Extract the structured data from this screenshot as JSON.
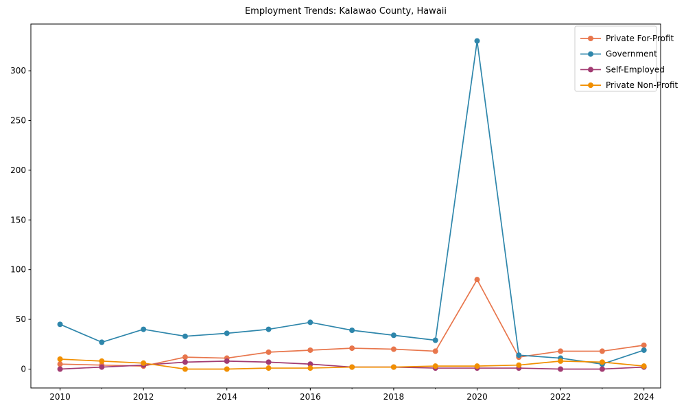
{
  "chart_data": {
    "type": "line",
    "title": "Employment Trends: Kalawao County, Hawaii",
    "xlabel": "",
    "ylabel": "",
    "x": [
      2010,
      2011,
      2012,
      2013,
      2014,
      2015,
      2016,
      2017,
      2018,
      2019,
      2020,
      2021,
      2022,
      2023,
      2024
    ],
    "x_major_ticks": [
      2010,
      2012,
      2014,
      2016,
      2018,
      2020,
      2022,
      2024
    ],
    "x_minor_ticks": [
      2011,
      2013,
      2015,
      2017,
      2019,
      2021,
      2023
    ],
    "yticks": [
      0,
      50,
      100,
      150,
      200,
      250,
      300
    ],
    "xlim": [
      2009.3,
      2024.4
    ],
    "ylim": [
      -19,
      347
    ],
    "grid": false,
    "legend_position": "upper right",
    "series": [
      {
        "name": "Private For-Profit",
        "color": "#e8764c",
        "values": [
          5,
          4,
          3,
          12,
          11,
          17,
          19,
          21,
          20,
          18,
          90,
          12,
          18,
          18,
          24
        ]
      },
      {
        "name": "Government",
        "color": "#2e86ab",
        "values": [
          45,
          27,
          40,
          33,
          36,
          40,
          47,
          39,
          34,
          29,
          330,
          14,
          11,
          5,
          19
        ]
      },
      {
        "name": "Self-Employed",
        "color": "#a23b72",
        "values": [
          0,
          2,
          4,
          7,
          8,
          7,
          5,
          2,
          2,
          1,
          1,
          1,
          0,
          0,
          2
        ]
      },
      {
        "name": "Private Non-Profit",
        "color": "#f18f01",
        "values": [
          10,
          8,
          6,
          0,
          0,
          1,
          1,
          2,
          2,
          3,
          3,
          4,
          8,
          7,
          3
        ]
      }
    ]
  },
  "style": {
    "axis_color": "#000000",
    "text_color": "#000000",
    "legend_border_color": "#cccccc",
    "background_color": "#ffffff"
  }
}
